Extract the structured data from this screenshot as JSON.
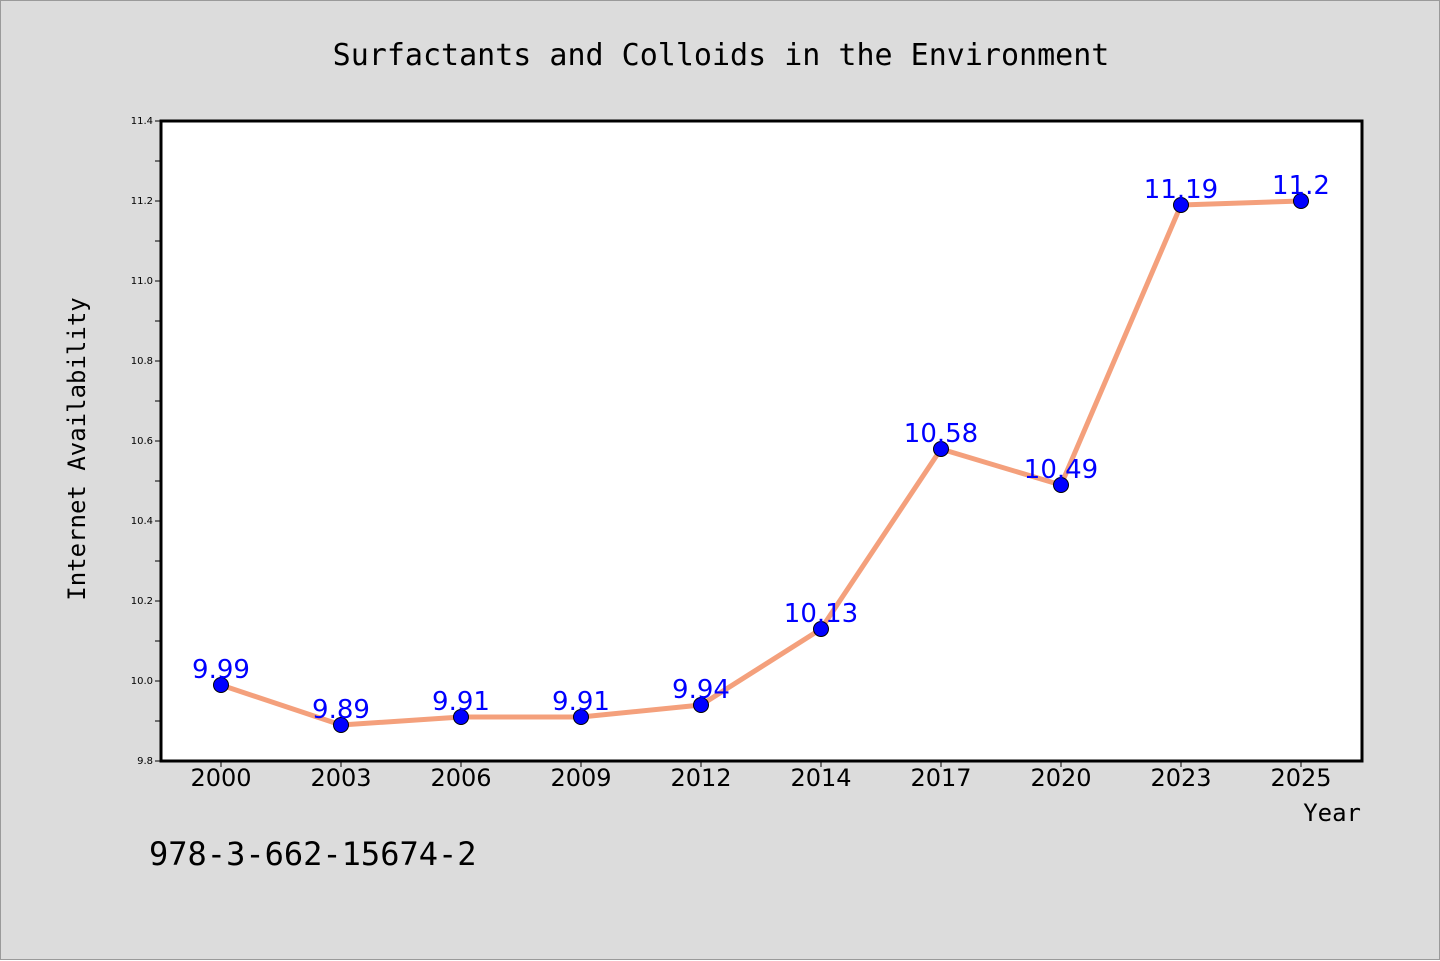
{
  "chart_data": {
    "type": "line",
    "title": "Surfactants and Colloids in the Environment",
    "xlabel": "Year",
    "ylabel": "Internet Availability",
    "categories": [
      "2000",
      "2003",
      "2006",
      "2009",
      "2012",
      "2014",
      "2017",
      "2020",
      "2023",
      "2025"
    ],
    "series": [
      {
        "values": [
          9.99,
          9.89,
          9.91,
          9.91,
          9.94,
          10.13,
          10.58,
          10.49,
          11.19,
          11.2
        ],
        "labels": [
          "9.99",
          "9.89",
          "9.91",
          "9.91",
          "9.94",
          "10.13",
          "10.58",
          "10.49",
          "11.19",
          "11.2"
        ],
        "line_color": "#f4a07c",
        "marker_color": "#0000ff"
      }
    ],
    "ylim": [
      9.8,
      11.4
    ],
    "yticks": [
      "9.8",
      "10.0",
      "10.2",
      "10.4",
      "10.6",
      "10.8",
      "11.0",
      "11.2",
      "11.4"
    ],
    "grid": false,
    "legend": "none"
  },
  "footer": {
    "isbn": "978-3-662-15674-2"
  },
  "colors": {
    "background": "#dcdcdc",
    "plot_area": "#ffffff",
    "frame": "#000000"
  }
}
